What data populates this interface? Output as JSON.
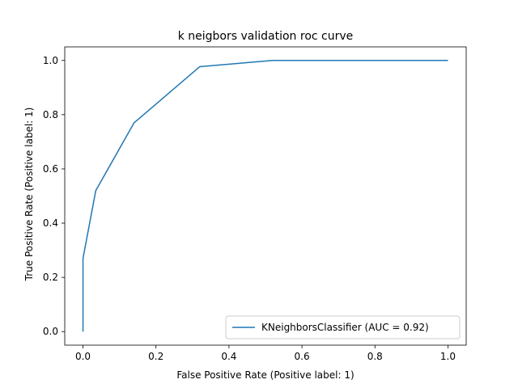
{
  "chart_data": {
    "type": "line",
    "title": "k neigbors validation roc curve",
    "xlabel": "False Positive Rate (Positive label: 1)",
    "ylabel": "True Positive Rate (Positive label: 1)",
    "xlim": [
      -0.05,
      1.05
    ],
    "ylim": [
      -0.05,
      1.05
    ],
    "x_ticks": [
      0.0,
      0.2,
      0.4,
      0.6,
      0.8,
      1.0
    ],
    "x_tick_labels": [
      "0.0",
      "0.2",
      "0.4",
      "0.6",
      "0.8",
      "1.0"
    ],
    "y_ticks": [
      0.0,
      0.2,
      0.4,
      0.6,
      0.8,
      1.0
    ],
    "y_tick_labels": [
      "0.0",
      "0.2",
      "0.4",
      "0.6",
      "0.8",
      "1.0"
    ],
    "grid": false,
    "legend_position": "lower-right",
    "series": [
      {
        "name": "KNeighborsClassifier (AUC = 0.92)",
        "color": "#1f77b4",
        "x": [
          0.0,
          0.0,
          0.035,
          0.14,
          0.32,
          0.52,
          1.0
        ],
        "y": [
          0.0,
          0.27,
          0.52,
          0.77,
          0.977,
          1.0,
          1.0
        ]
      }
    ]
  }
}
